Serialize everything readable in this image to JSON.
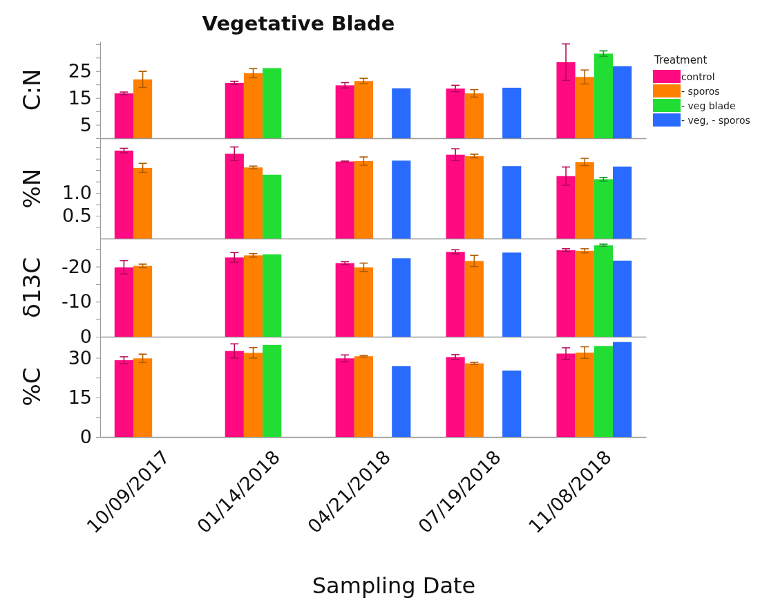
{
  "chart_data": [
    {
      "type": "bar",
      "title": "Vegetative Blade",
      "ylabel": "C:N",
      "legend_title": "Treatment",
      "legend": "right",
      "tick_labels": "y",
      "ylim": [
        0,
        36
      ],
      "yticks": [
        {
          "value": 0,
          "label": null
        },
        5,
        {
          "value": 10,
          "label": null
        },
        15,
        {
          "value": 20,
          "label": null
        },
        25,
        {
          "value": 30,
          "label": null
        },
        {
          "value": 35,
          "label": null
        }
      ],
      "series": [
        {
          "name": "control",
          "color": "#ff0a80",
          "values": [
            16.7,
            20.6,
            19.7,
            18.5,
            28.3
          ],
          "errors": [
            0.5,
            0.6,
            1,
            1.2,
            6.8
          ]
        },
        {
          "name": "- sporos",
          "color": "#ff8000",
          "values": [
            21.9,
            24.2,
            21.3,
            16.7,
            22.8
          ],
          "errors": [
            3,
            1.7,
            1,
            1.4,
            2.6
          ]
        },
        {
          "name": "- veg blade",
          "color": "#22dd33",
          "values": [
            null,
            26.1,
            null,
            null,
            31.5
          ],
          "errors": [
            null,
            null,
            null,
            null,
            1
          ]
        },
        {
          "name": "- veg, - sporos",
          "color": "#2a6bff",
          "values": [
            null,
            null,
            18.6,
            18.8,
            26.8
          ]
        }
      ]
    },
    {
      "type": "bar",
      "ylabel": "%N",
      "tick_labels": "y",
      "ylim": [
        0,
        2.2
      ],
      "yticks": [
        {
          "value": 0.25,
          "label": null
        },
        0.5,
        {
          "value": 0.75,
          "label": null
        },
        {
          "value": 1,
          "label": "1.0"
        },
        {
          "value": 1.25,
          "label": null
        },
        {
          "value": 1.5,
          "label": null
        },
        {
          "value": 1.75,
          "label": null
        },
        {
          "value": 2,
          "label": null
        }
      ],
      "series": [
        {
          "color": "#ff0a80",
          "values": [
            1.93,
            1.86,
            1.69,
            1.84,
            1.37
          ],
          "errors": [
            0.05,
            0.15,
            0.01,
            0.13,
            0.2
          ]
        },
        {
          "color": "#ff8000",
          "values": [
            1.55,
            1.56,
            1.7,
            1.81,
            1.68
          ],
          "errors": [
            0.1,
            0.03,
            0.09,
            0.04,
            0.08
          ]
        },
        {
          "color": "#22dd33",
          "values": [
            null,
            1.4,
            null,
            null,
            1.3
          ],
          "errors": [
            null,
            null,
            null,
            null,
            0.04
          ]
        },
        {
          "color": "#2a6bff",
          "values": [
            null,
            null,
            1.71,
            1.59,
            1.58
          ]
        }
      ]
    },
    {
      "type": "bar",
      "ylabel": "δ13C",
      "tick_labels": "y",
      "ylim": [
        0,
        -28
      ],
      "yticks": [
        0,
        {
          "value": -5,
          "label": null
        },
        -10,
        {
          "value": -15,
          "label": null
        },
        -20,
        {
          "value": -25,
          "label": null
        }
      ],
      "series": [
        {
          "color": "#ff0a80",
          "values": [
            -19.8,
            -22.6,
            -21,
            -24.2,
            -24.7
          ],
          "errors": [
            1.9,
            1.4,
            0.4,
            0.6,
            0.4
          ]
        },
        {
          "color": "#ff8000",
          "values": [
            -20.2,
            -23.2,
            -19.8,
            -21.6,
            -24.5
          ],
          "errors": [
            0.5,
            0.5,
            1.2,
            1.6,
            0.6
          ]
        },
        {
          "color": "#22dd33",
          "values": [
            null,
            -23.5,
            null,
            null,
            -26.1
          ],
          "errors": [
            null,
            null,
            null,
            null,
            0.3
          ]
        },
        {
          "color": "#2a6bff",
          "values": [
            null,
            null,
            -22.4,
            -24,
            -21.7
          ]
        }
      ]
    },
    {
      "type": "bar",
      "ylabel": "%C",
      "xlabel": "Sampling Date",
      "categories": [
        "10/09/2017",
        "01/14/2018",
        "04/21/2018",
        "07/19/2018",
        "11/08/2018"
      ],
      "ylim": [
        0,
        38
      ],
      "yticks": [
        0,
        {
          "value": 7.5,
          "label": null
        },
        15,
        {
          "value": 22.5,
          "label": null
        },
        30
      ],
      "series": [
        {
          "color": "#ff0a80",
          "values": [
            29.1,
            32.6,
            29.8,
            30.3,
            31.6
          ],
          "errors": [
            1.3,
            2.7,
            1.3,
            0.9,
            2.2
          ]
        },
        {
          "color": "#ff8000",
          "values": [
            29.8,
            31.9,
            30.6,
            27.9,
            32
          ],
          "errors": [
            1.6,
            2,
            0.3,
            0.4,
            2.2
          ]
        },
        {
          "color": "#22dd33",
          "values": [
            null,
            34.9,
            null,
            null,
            34.5
          ]
        },
        {
          "color": "#2a6bff",
          "values": [
            null,
            null,
            26.9,
            25.2,
            36
          ]
        }
      ]
    }
  ]
}
